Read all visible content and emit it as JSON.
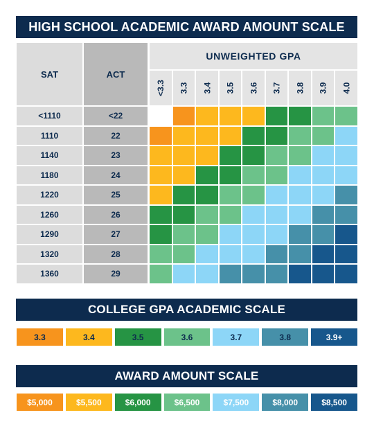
{
  "title": "HIGH SCHOOL ACADEMIC AWARD AMOUNT SCALE",
  "table": {
    "sat_header": "SAT",
    "act_header": "ACT",
    "gpa_header": "UNWEIGHTED GPA",
    "gpa_columns": [
      "<3.3",
      "3.3",
      "3.4",
      "3.5",
      "3.6",
      "3.7",
      "3.8",
      "3.9",
      "4.0"
    ],
    "rows": [
      {
        "sat": "<1110",
        "act": "<22",
        "levels": [
          0,
          1,
          2,
          2,
          2,
          3,
          3,
          4,
          4
        ]
      },
      {
        "sat": "1110",
        "act": "22",
        "levels": [
          1,
          2,
          2,
          2,
          3,
          3,
          4,
          4,
          5
        ]
      },
      {
        "sat": "1140",
        "act": "23",
        "levels": [
          2,
          2,
          2,
          3,
          3,
          4,
          4,
          5,
          5
        ]
      },
      {
        "sat": "1180",
        "act": "24",
        "levels": [
          2,
          2,
          3,
          3,
          4,
          4,
          5,
          5,
          5
        ]
      },
      {
        "sat": "1220",
        "act": "25",
        "levels": [
          2,
          3,
          3,
          4,
          4,
          5,
          5,
          5,
          6
        ]
      },
      {
        "sat": "1260",
        "act": "26",
        "levels": [
          3,
          3,
          4,
          4,
          5,
          5,
          5,
          6,
          6
        ]
      },
      {
        "sat": "1290",
        "act": "27",
        "levels": [
          3,
          4,
          4,
          5,
          5,
          5,
          6,
          6,
          7
        ]
      },
      {
        "sat": "1320",
        "act": "28",
        "levels": [
          4,
          4,
          5,
          5,
          5,
          6,
          6,
          7,
          7
        ]
      },
      {
        "sat": "1360",
        "act": "29",
        "levels": [
          4,
          5,
          5,
          6,
          6,
          6,
          7,
          7,
          7
        ]
      }
    ]
  },
  "level_colors": [
    "#ffffff",
    "#f7941d",
    "#fdb81e",
    "#269444",
    "#6cc28a",
    "#8dd6f7",
    "#4690a9",
    "#17578c"
  ],
  "college_scale": {
    "title": "COLLEGE GPA ACADEMIC SCALE",
    "items": [
      {
        "label": "3.3",
        "color": "#f7941d",
        "text_color": "#0d2b4e"
      },
      {
        "label": "3.4",
        "color": "#fdb81e",
        "text_color": "#0d2b4e"
      },
      {
        "label": "3.5",
        "color": "#269444",
        "text_color": "#0d2b4e"
      },
      {
        "label": "3.6",
        "color": "#6cc28a",
        "text_color": "#0d2b4e"
      },
      {
        "label": "3.7",
        "color": "#8dd6f7",
        "text_color": "#0d2b4e"
      },
      {
        "label": "3.8",
        "color": "#4690a9",
        "text_color": "#0d2b4e"
      },
      {
        "label": "3.9+",
        "color": "#17578c",
        "text_color": "#ffffff"
      }
    ]
  },
  "award_scale": {
    "title": "AWARD AMOUNT SCALE",
    "items": [
      {
        "label": "$5,000",
        "color": "#f7941d",
        "text_color": "#ffffff"
      },
      {
        "label": "$5,500",
        "color": "#fdb81e",
        "text_color": "#ffffff"
      },
      {
        "label": "$6,000",
        "color": "#269444",
        "text_color": "#ffffff"
      },
      {
        "label": "$6,500",
        "color": "#6cc28a",
        "text_color": "#ffffff"
      },
      {
        "label": "$7,500",
        "color": "#8dd6f7",
        "text_color": "#ffffff"
      },
      {
        "label": "$8,000",
        "color": "#4690a9",
        "text_color": "#ffffff"
      },
      {
        "label": "$8,500",
        "color": "#17578c",
        "text_color": "#ffffff"
      }
    ]
  }
}
